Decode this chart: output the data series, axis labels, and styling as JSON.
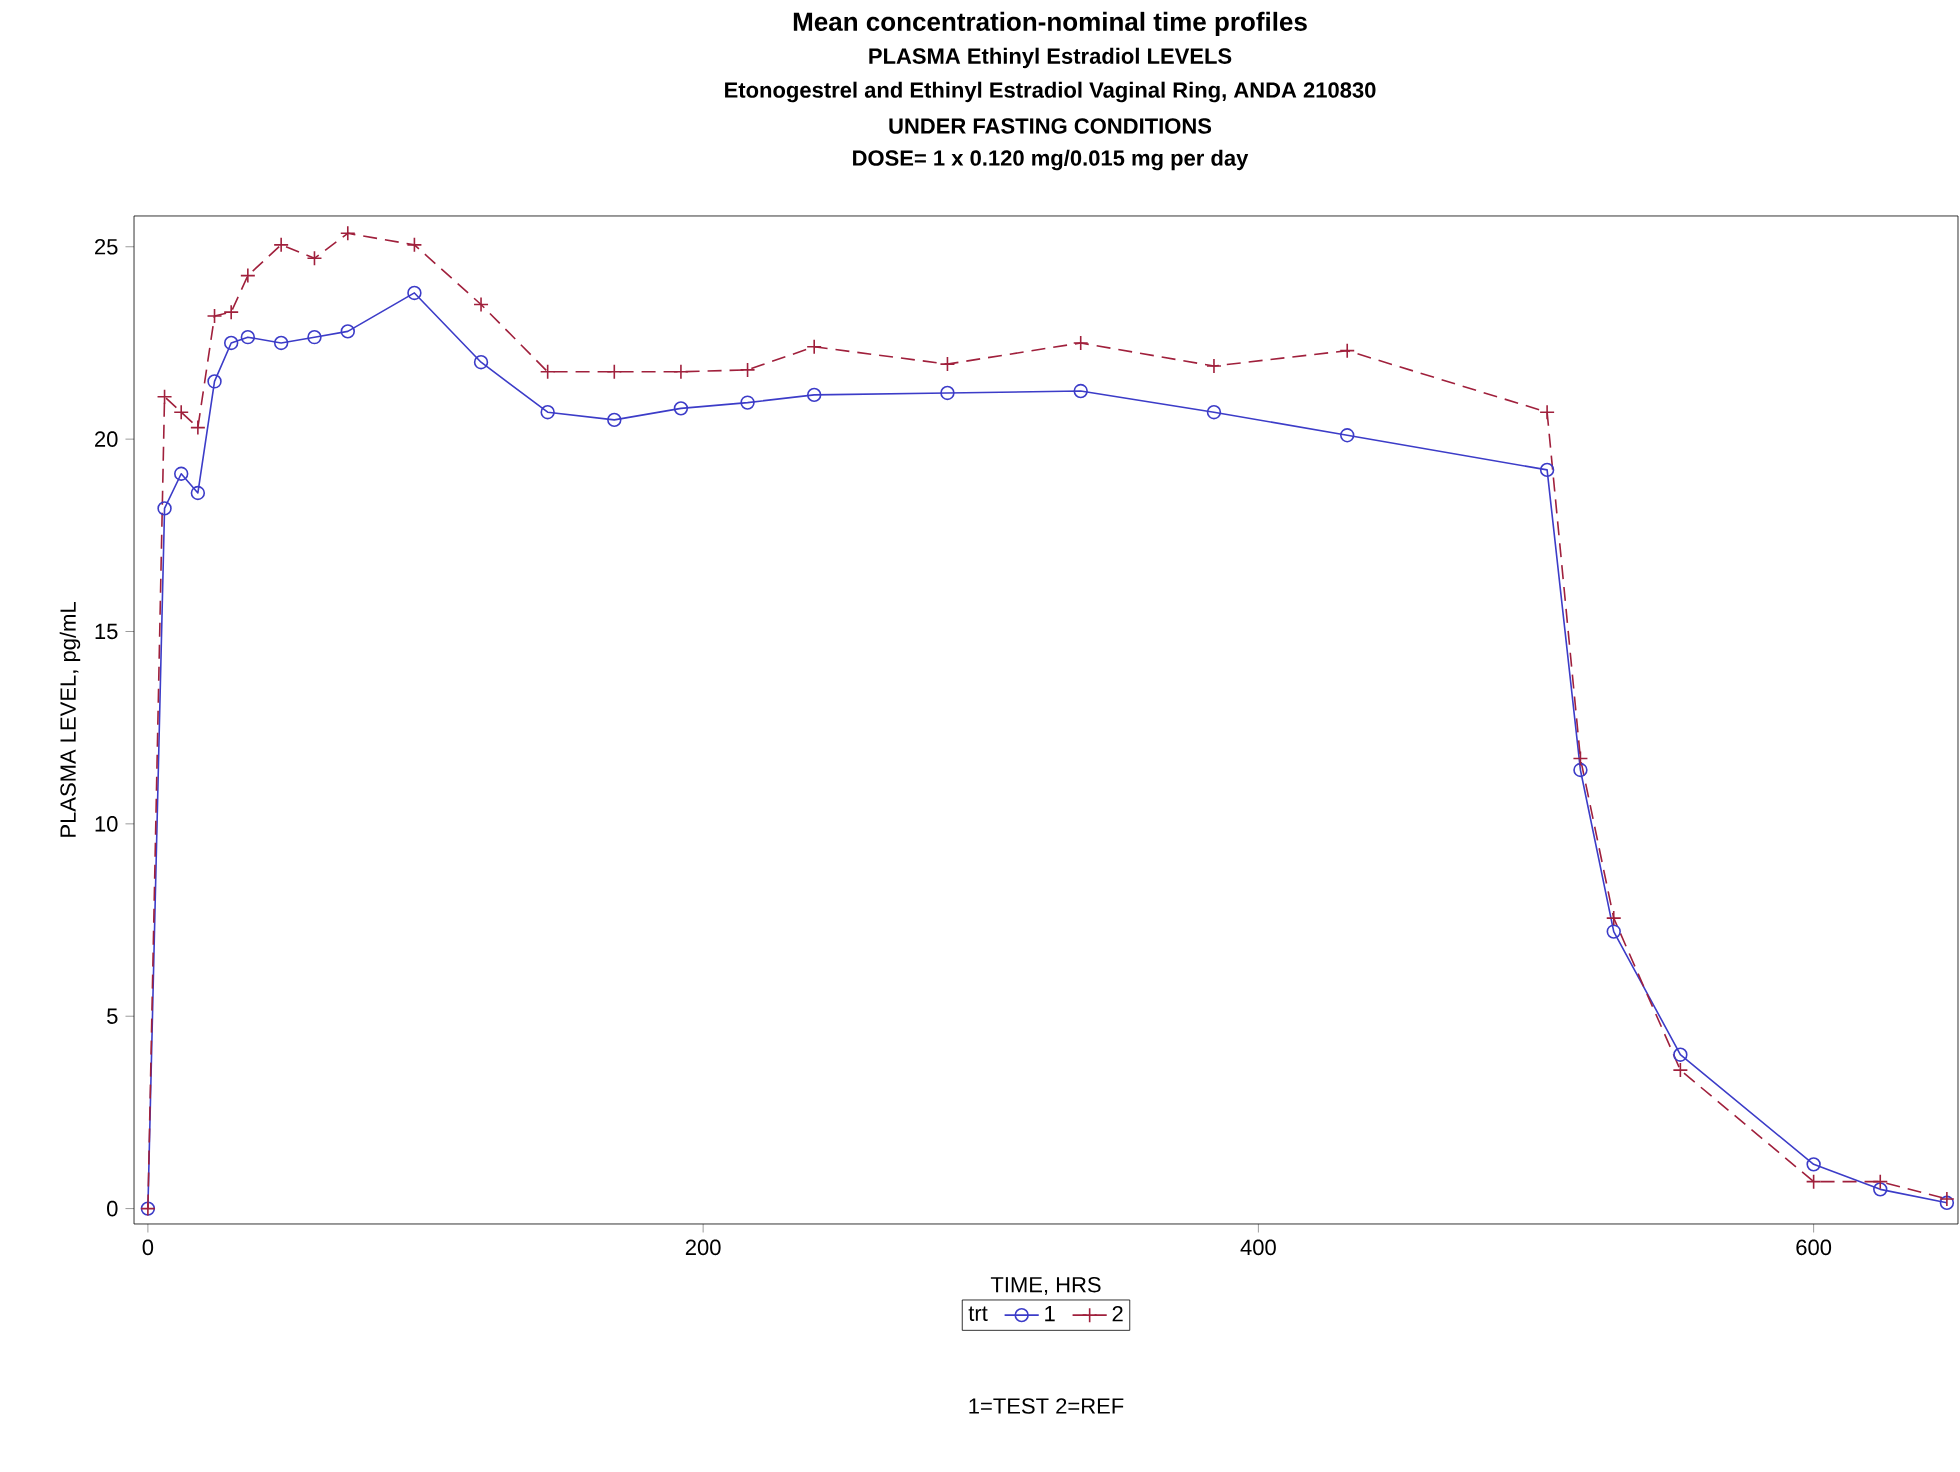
{
  "chart_data": {
    "type": "line",
    "title": "Mean concentration-nominal time profiles",
    "subtitle": "PLASMA Ethinyl Estradiol LEVELS",
    "annotations": [
      "Etonogestrel and Ethinyl Estradiol Vaginal Ring, ANDA 210830",
      "UNDER FASTING CONDITIONS",
      "DOSE= 1 x 0.120 mg/0.015 mg per day",
      "1=TEST  2=REF"
    ],
    "xlabel": "TIME, HRS",
    "ylabel": "PLASMA LEVEL, pg/mL",
    "x": [
      0,
      6,
      12,
      18,
      24,
      30,
      36,
      48,
      60,
      72,
      96,
      120,
      144,
      168,
      192,
      216,
      240,
      288,
      336,
      384,
      432,
      504,
      516,
      528,
      552,
      600,
      624,
      648
    ],
    "series": [
      {
        "name": "1",
        "color": "#3c3cc8",
        "marker": "circle",
        "line_style": "solid",
        "values": [
          0,
          18.2,
          19.1,
          18.6,
          21.5,
          22.5,
          22.65,
          22.5,
          22.65,
          22.8,
          23.8,
          22.0,
          20.7,
          20.5,
          20.8,
          20.95,
          21.15,
          21.2,
          21.25,
          20.7,
          20.1,
          19.2,
          11.4,
          7.2,
          4.0,
          1.15,
          0.5,
          0.15
        ]
      },
      {
        "name": "2",
        "color": "#a0203c",
        "marker": "cross",
        "line_style": "dashed",
        "values": [
          0,
          21.1,
          20.7,
          20.3,
          23.2,
          23.3,
          24.25,
          25.05,
          24.7,
          25.35,
          25.05,
          23.5,
          21.75,
          21.75,
          21.75,
          21.8,
          22.4,
          21.95,
          22.5,
          21.9,
          22.3,
          20.7,
          11.7,
          7.55,
          3.6,
          0.7,
          0.7,
          0.25
        ]
      }
    ],
    "legend_title": "trt",
    "legend": "bottom",
    "xlim": [
      -5,
      652
    ],
    "ylim": [
      -0.4,
      25.8
    ],
    "xticks": [
      0,
      200,
      400,
      600
    ],
    "yticks": [
      0,
      5,
      10,
      15,
      20,
      25
    ],
    "grid": false
  }
}
